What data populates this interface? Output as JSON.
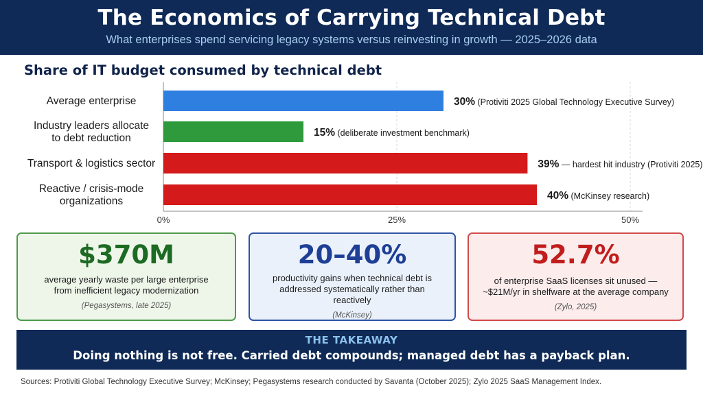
{
  "header": {
    "title": "The Economics of Carrying Technical Debt",
    "subtitle": "What enterprises spend servicing legacy systems versus reinvesting in growth — 2025–2026 data"
  },
  "chart_data": {
    "type": "bar",
    "orientation": "horizontal",
    "title": "Share of IT budget consumed by technical debt",
    "categories": [
      [
        "Average enterprise"
      ],
      [
        "Industry leaders allocate",
        "to debt reduction"
      ],
      [
        "Transport & logistics sector"
      ],
      [
        "Reactive / crisis-mode",
        "organizations"
      ]
    ],
    "values": [
      30,
      15,
      39,
      40
    ],
    "value_labels": [
      "30%",
      "15%",
      "39%",
      "40%"
    ],
    "annotations": [
      "(Protiviti 2025 Global Technology Executive Survey)",
      "(deliberate investment benchmark)",
      "— hardest hit industry (Protiviti 2025)",
      "(McKinsey research)"
    ],
    "colors": [
      "#2f7fe0",
      "#2e9a3c",
      "#d41a1a",
      "#d41a1a"
    ],
    "xlim": [
      0,
      50
    ],
    "xticks": [
      0,
      25,
      50
    ],
    "xtick_labels": [
      "0%",
      "25%",
      "50%"
    ],
    "grid": true
  },
  "cards": [
    {
      "value": "$370M",
      "description": [
        "average yearly waste per large enterprise",
        "from inefficient legacy modernization"
      ],
      "source": "(Pegasystems, late 2025)",
      "color": "#1d6a23"
    },
    {
      "value": "20–40%",
      "description": [
        "productivity gains when technical debt is",
        "addressed systematically rather than",
        "reactively"
      ],
      "source": "(McKinsey)",
      "color": "#1e3f95"
    },
    {
      "value": "52.7%",
      "description": [
        "of enterprise SaaS licenses sit unused —",
        "~$21M/yr in shelfware at the average company"
      ],
      "source": "(Zylo, 2025)",
      "color": "#c21d1d"
    }
  ],
  "takeaway": {
    "label": "THE TAKEAWAY",
    "text": "Doing nothing is not free. Carried debt compounds; managed debt has a payback plan."
  },
  "sources": "Sources: Protiviti Global Technology Executive Survey; McKinsey; Pegasystems research conducted by Savanta (October 2025); Zylo 2025 SaaS Management Index."
}
